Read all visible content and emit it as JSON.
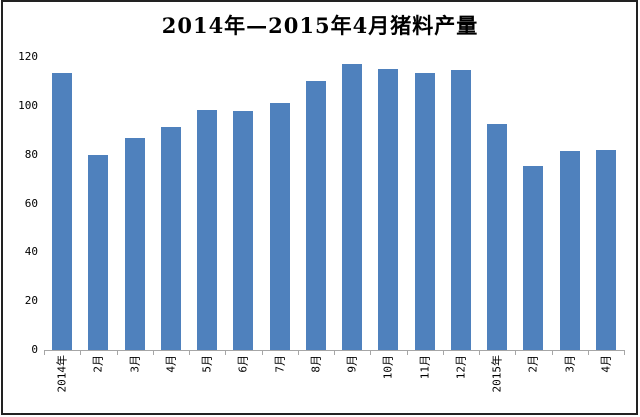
{
  "chart_data": {
    "type": "bar",
    "title": "2014年—2015年4月猪料产量",
    "categories": [
      "2014年",
      "2月",
      "3月",
      "4月",
      "5月",
      "6月",
      "7月",
      "8月",
      "9月",
      "10月",
      "11月",
      "12月",
      "2015年",
      "2月",
      "3月",
      "4月"
    ],
    "values": [
      113.5,
      80,
      87,
      91.5,
      98.5,
      98,
      101,
      110,
      117,
      115,
      113.5,
      114.5,
      92.5,
      75.5,
      81.5,
      82
    ],
    "xlabel": "",
    "ylabel": "",
    "ylim": [
      0,
      120
    ],
    "yticks": [
      0,
      20,
      40,
      60,
      80,
      100,
      120
    ],
    "x_label_rotation_deg": -90,
    "grid": false,
    "legend_position": "none",
    "bar_color": "#4f81bd",
    "axis_color": "#a6a6a6",
    "frame_color": "#222222",
    "background_color": "#ffffff"
  }
}
